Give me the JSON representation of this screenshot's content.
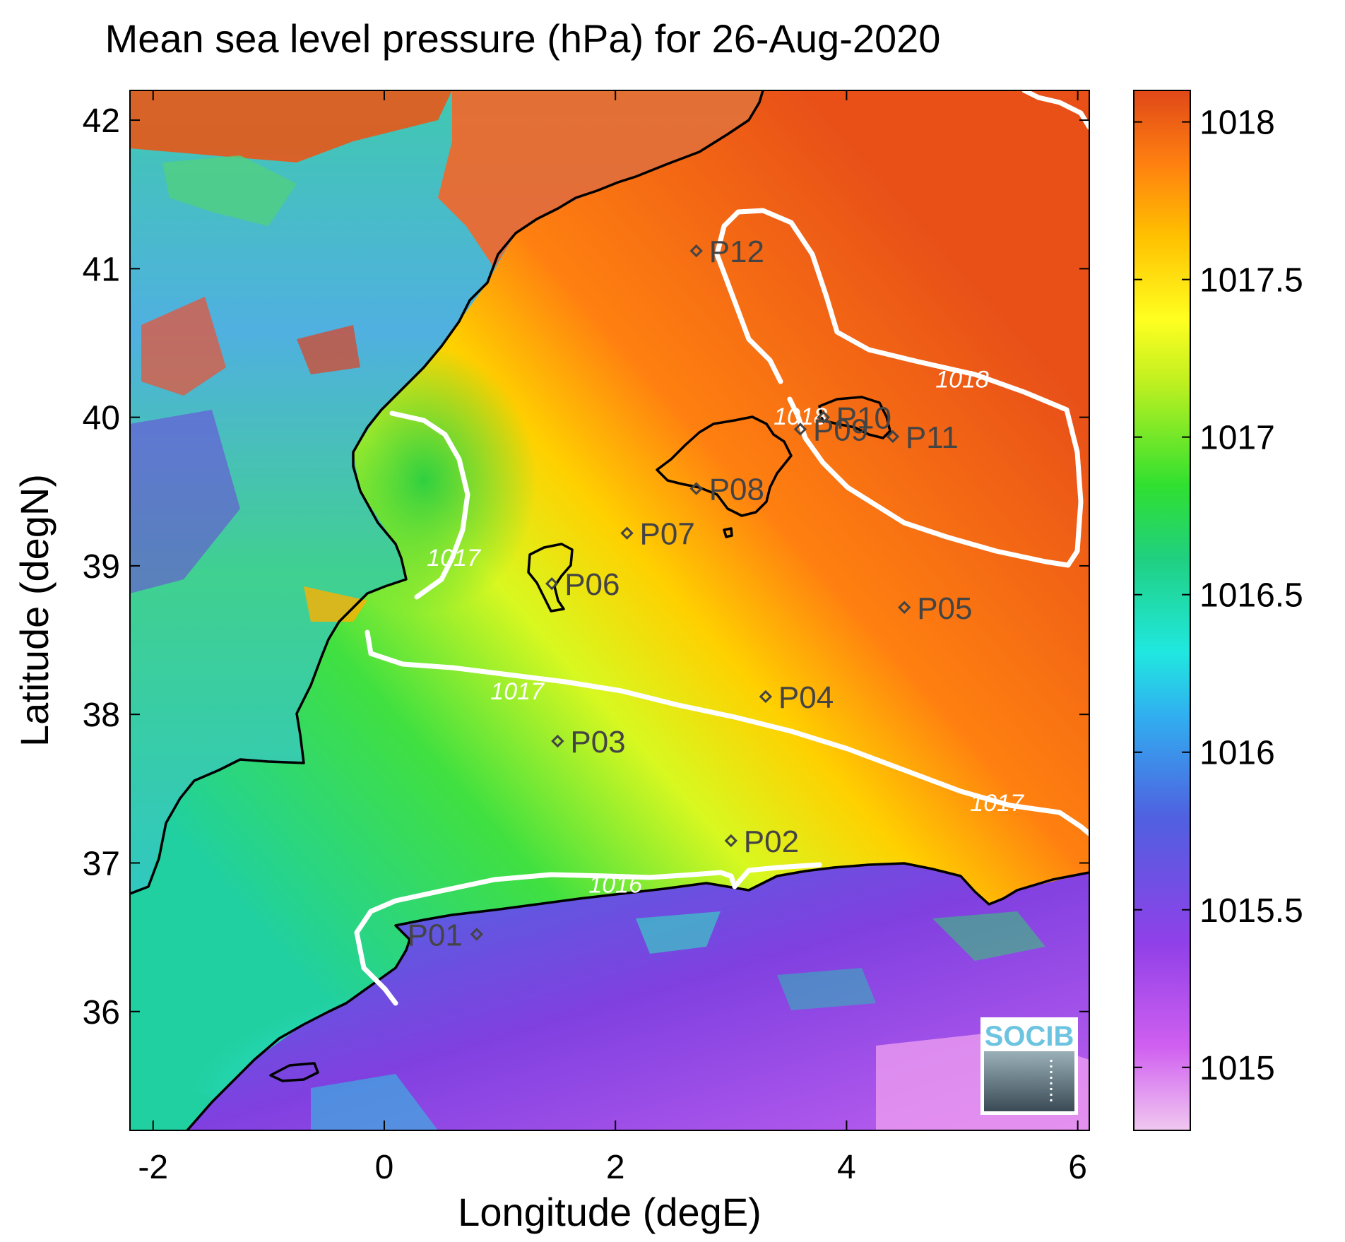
{
  "title": "Mean sea level pressure (hPa) for 26-Aug-2020",
  "xlabel": "Longitude (degE)",
  "ylabel": "Latitude (degN)",
  "xlim": [
    -2.2,
    6.1
  ],
  "ylim": [
    35.2,
    42.2
  ],
  "xticks": [
    -2,
    0,
    2,
    4,
    6
  ],
  "yticks": [
    36,
    37,
    38,
    39,
    40,
    41,
    42
  ],
  "colorbar": {
    "range": [
      1014.8,
      1018.1
    ],
    "ticks": [
      "1015",
      "1015.5",
      "1016",
      "1016.5",
      "1017",
      "1017.5",
      "1018"
    ],
    "tick_values": [
      1015,
      1015.5,
      1016,
      1016.5,
      1017,
      1017.5,
      1018
    ]
  },
  "contours": [
    {
      "level": "1016",
      "label": "1016",
      "label_at": [
        2.0,
        36.8
      ]
    },
    {
      "level": "1017",
      "label": "1017",
      "label_at": [
        0.6,
        39.0
      ]
    },
    {
      "level": "1017",
      "label": "1017",
      "label_at": [
        1.15,
        38.1
      ]
    },
    {
      "level": "1017",
      "label": "1017",
      "label_at": [
        5.3,
        37.35
      ]
    },
    {
      "level": "1018",
      "label": "1018",
      "label_at": [
        5.0,
        40.2
      ]
    },
    {
      "level": "1018",
      "label": "1018",
      "label_at": [
        3.6,
        39.95
      ]
    }
  ],
  "points": [
    {
      "name": "P01",
      "lon": 0.8,
      "lat": 36.52
    },
    {
      "name": "P02",
      "lon": 3.0,
      "lat": 37.15
    },
    {
      "name": "P03",
      "lon": 1.5,
      "lat": 37.82
    },
    {
      "name": "P04",
      "lon": 3.3,
      "lat": 38.12
    },
    {
      "name": "P05",
      "lon": 4.5,
      "lat": 38.72
    },
    {
      "name": "P06",
      "lon": 1.45,
      "lat": 38.88
    },
    {
      "name": "P07",
      "lon": 2.1,
      "lat": 39.22
    },
    {
      "name": "P08",
      "lon": 2.7,
      "lat": 39.52
    },
    {
      "name": "P09",
      "lon": 3.6,
      "lat": 39.92
    },
    {
      "name": "P10",
      "lon": 3.8,
      "lat": 40.0
    },
    {
      "name": "P11",
      "lon": 4.4,
      "lat": 39.87
    },
    {
      "name": "P12",
      "lon": 2.7,
      "lat": 41.12
    }
  ],
  "colors": {
    "contour": "#ffffff",
    "coast": "#000000",
    "marker": "#444444",
    "colormap": [
      "#f0c8f0",
      "#c040f0",
      "#8040e0",
      "#3090f0",
      "#20e8e0",
      "#20d070",
      "#30e030",
      "#e0ff20",
      "#ffd000",
      "#ff9000",
      "#f06010",
      "#e04818"
    ]
  },
  "logo": {
    "text": "SOCIB",
    "accent": "#6cc4e0"
  }
}
